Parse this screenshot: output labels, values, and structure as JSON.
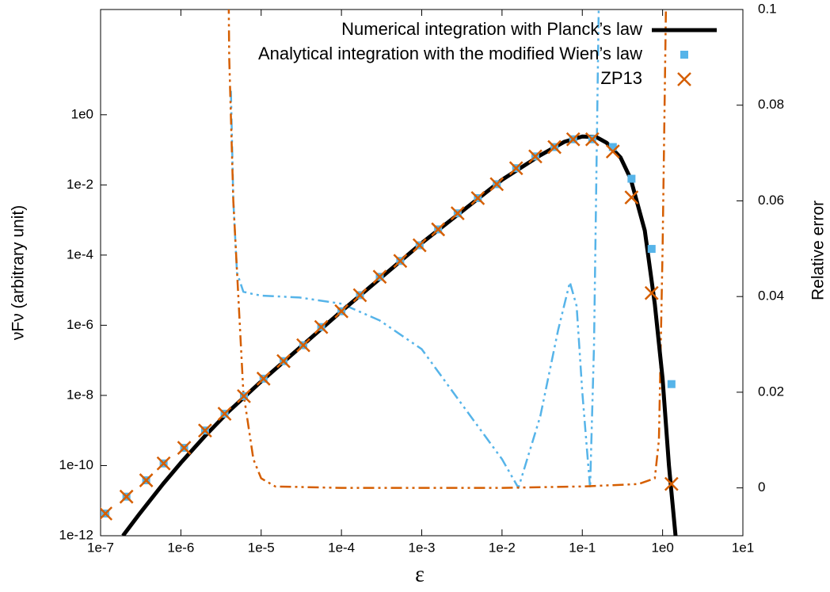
{
  "chart_data": {
    "type": "line",
    "xlabel": "ε",
    "ylabel": "νFν (arbitrary unit)",
    "y2label": "Relative error",
    "xscale": "log",
    "yscale": "log",
    "xlim": [
      1e-07,
      10
    ],
    "ylim": [
      1e-12,
      1000
    ],
    "y2lim": [
      -0.01,
      0.1
    ],
    "xticks": [
      {
        "value": 1e-07,
        "label": "1e-7"
      },
      {
        "value": 1e-06,
        "label": "1e-6"
      },
      {
        "value": 1e-05,
        "label": "1e-5"
      },
      {
        "value": 0.0001,
        "label": "1e-4"
      },
      {
        "value": 0.001,
        "label": "1e-3"
      },
      {
        "value": 0.01,
        "label": "1e-2"
      },
      {
        "value": 0.1,
        "label": "1e-1"
      },
      {
        "value": 1,
        "label": "1e0"
      },
      {
        "value": 10,
        "label": "1e1"
      }
    ],
    "yticks": [
      {
        "value": 1e-12,
        "label": "1e-12"
      },
      {
        "value": 1e-10,
        "label": "1e-10"
      },
      {
        "value": 1e-08,
        "label": "1e-8"
      },
      {
        "value": 1e-06,
        "label": "1e-6"
      },
      {
        "value": 0.0001,
        "label": "1e-4"
      },
      {
        "value": 0.01,
        "label": "1e-2"
      },
      {
        "value": 1,
        "label": "1e0"
      }
    ],
    "y2ticks": [
      0,
      0.02,
      0.04,
      0.06,
      0.08,
      0.1
    ],
    "legend": "top-right",
    "series": [
      {
        "name": "Numerical integration with Planck’s law",
        "color": "#000000",
        "marker": "line",
        "dash": "solid",
        "width": 5,
        "x": [
          1.9e-07,
          3e-07,
          6e-07,
          1e-06,
          2e-06,
          4e-06,
          1e-05,
          0.0001,
          0.001,
          0.01,
          0.03,
          0.06,
          0.1,
          0.15,
          0.2,
          0.3,
          0.4,
          0.6,
          0.8,
          1.0,
          1.2,
          1.45
        ],
        "values": [
          1e-12,
          4e-12,
          3e-11,
          1.2e-10,
          7e-10,
          3.6e-09,
          2.5e-08,
          2.5e-06,
          0.00022,
          0.014,
          0.07,
          0.17,
          0.24,
          0.23,
          0.16,
          0.06,
          0.015,
          0.0005,
          4e-06,
          3e-08,
          1e-10,
          1e-12
        ]
      },
      {
        "name": "Analytical integration with the modified Wien’s law",
        "color": "#56b4e9",
        "marker": "square",
        "x": [
          1.15e-07,
          2.1e-07,
          3.7e-07,
          6.1e-07,
          1.1e-06,
          2e-06,
          3.5e-06,
          6.1e-06,
          1.07e-05,
          1.9e-05,
          3.35e-05,
          5.6e-05,
          0.0001,
          0.00017,
          0.0003,
          0.00054,
          0.00094,
          0.0016,
          0.0028,
          0.005,
          0.0086,
          0.015,
          0.026,
          0.045,
          0.077,
          0.133,
          0.24,
          0.41,
          0.73,
          1.29
        ],
        "values": [
          4.3e-12,
          1.3e-11,
          3.8e-11,
          1.15e-10,
          3.2e-10,
          1e-09,
          3e-09,
          9.5e-09,
          3e-08,
          9.5e-08,
          2.7e-07,
          8.9e-07,
          2.5e-06,
          7.2e-06,
          2.4e-05,
          6.8e-05,
          0.00019,
          0.00054,
          0.00155,
          0.0042,
          0.0105,
          0.03,
          0.065,
          0.12,
          0.2,
          0.2,
          0.12,
          0.015,
          0.00015,
          2.1e-08
        ]
      },
      {
        "name": "ZP13",
        "color": "#d55e00",
        "marker": "x",
        "x": [
          1.15e-07,
          2.1e-07,
          3.7e-07,
          6.1e-07,
          1.1e-06,
          2e-06,
          3.5e-06,
          6.1e-06,
          1.07e-05,
          1.9e-05,
          3.35e-05,
          5.6e-05,
          0.0001,
          0.00017,
          0.0003,
          0.00054,
          0.00094,
          0.0016,
          0.0028,
          0.005,
          0.0086,
          0.015,
          0.026,
          0.045,
          0.077,
          0.133,
          0.24,
          0.41,
          0.73,
          1.29
        ],
        "values": [
          4.3e-12,
          1.3e-11,
          3.8e-11,
          1.15e-10,
          3.2e-10,
          1e-09,
          3e-09,
          9.5e-09,
          3e-08,
          9.5e-08,
          2.7e-07,
          8.9e-07,
          2.5e-06,
          7.2e-06,
          2.4e-05,
          6.8e-05,
          0.00019,
          0.00054,
          0.00155,
          0.0042,
          0.0105,
          0.03,
          0.065,
          0.12,
          0.2,
          0.2,
          0.09,
          0.0044,
          8.3e-06,
          3e-11
        ]
      },
      {
        "color": "#56b4e9",
        "marker": "line",
        "dash": "dash-dot-dot",
        "width": 2.5,
        "axis": "y2",
        "x": [
          4.2e-06,
          4.5e-06,
          5e-06,
          6e-06,
          8e-06,
          1e-05,
          3e-05,
          0.0001,
          0.0003,
          0.001,
          0.003,
          0.01,
          0.016,
          0.03,
          0.05,
          0.07,
          0.085,
          0.1,
          0.125,
          0.14,
          0.16,
          0.18
        ],
        "values": [
          0.083,
          0.06,
          0.045,
          0.041,
          0.0405,
          0.0402,
          0.0398,
          0.0385,
          0.035,
          0.029,
          0.018,
          0.006,
          0.0,
          0.015,
          0.033,
          0.043,
          0.038,
          0.02,
          0.0,
          0.03,
          0.1,
          0.13
        ]
      },
      {
        "color": "#d55e00",
        "marker": "line",
        "dash": "dash-dot-dot",
        "width": 2.5,
        "axis": "y2",
        "x": [
          3.5e-06,
          4e-06,
          4.5e-06,
          6e-06,
          8e-06,
          1e-05,
          1.5e-05,
          0.0001,
          0.001,
          0.01,
          0.1,
          0.5,
          0.8,
          0.9,
          1.0,
          1.1,
          1.2
        ],
        "values": [
          0.2,
          0.09,
          0.06,
          0.02,
          0.006,
          0.002,
          0.0003,
          0.0,
          0.0,
          0.0,
          0.0003,
          0.0008,
          0.002,
          0.01,
          0.05,
          0.1,
          0.15
        ]
      }
    ]
  }
}
